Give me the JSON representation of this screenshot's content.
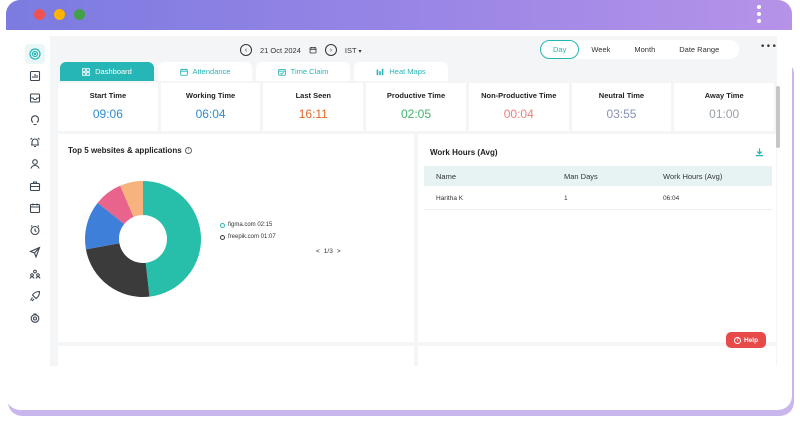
{
  "window": {
    "dots": [
      {
        "name": "close",
        "color": "#ef5350"
      },
      {
        "name": "minimize",
        "color": "#ffb300"
      },
      {
        "name": "maximize",
        "color": "#43a047"
      }
    ]
  },
  "sidebar": {
    "items": [
      {
        "name": "sidebar-item-dashboard",
        "icon": "target-icon",
        "active": true
      },
      {
        "name": "sidebar-item-reports",
        "icon": "report-icon"
      },
      {
        "name": "sidebar-item-inbox",
        "icon": "inbox-icon"
      },
      {
        "name": "sidebar-item-productivity",
        "icon": "bulb-icon"
      },
      {
        "name": "sidebar-item-alerts",
        "icon": "alarm-icon"
      },
      {
        "name": "sidebar-item-users",
        "icon": "user-icon"
      },
      {
        "name": "sidebar-item-projects",
        "icon": "briefcase-icon"
      },
      {
        "name": "sidebar-item-calendar",
        "icon": "calendar-icon"
      },
      {
        "name": "sidebar-item-timesheet",
        "icon": "clock-icon"
      },
      {
        "name": "sidebar-item-tracking",
        "icon": "send-icon"
      },
      {
        "name": "sidebar-item-teams",
        "icon": "team-icon"
      },
      {
        "name": "sidebar-item-performance",
        "icon": "rocket-icon"
      },
      {
        "name": "sidebar-item-settings",
        "icon": "gear-icon"
      }
    ]
  },
  "toolbar": {
    "date": "21 Oct 2024",
    "timezone": "IST",
    "ranges": [
      "Day",
      "Week",
      "Month",
      "Date Range"
    ],
    "active_range": "Day",
    "more": "•••"
  },
  "tabs": [
    {
      "label": "Dashboard",
      "active": true
    },
    {
      "label": "Attendance"
    },
    {
      "label": "Time Claim"
    },
    {
      "label": "Heat Maps"
    }
  ],
  "stats": [
    {
      "label": "Start Time",
      "value": "09:06",
      "color": "#2c8dd6"
    },
    {
      "label": "Working Time",
      "value": "06:04",
      "color": "#2c8dd6"
    },
    {
      "label": "Last Seen",
      "value": "16:11",
      "color": "#e0662a"
    },
    {
      "label": "Productive Time",
      "value": "02:05",
      "color": "#3fb56a"
    },
    {
      "label": "Non-Productive Time",
      "value": "00:04",
      "color": "#ef7f7f"
    },
    {
      "label": "Neutral Time",
      "value": "03:55",
      "color": "#8891b8"
    },
    {
      "label": "Away Time",
      "value": "01:00",
      "color": "#9aa0a6"
    }
  ],
  "websites": {
    "title": "Top 5 websites & applications",
    "legend": [
      {
        "label": "figma.com 02:15",
        "color": "#27b6b6"
      },
      {
        "label": "freepik.com 01:07",
        "color": "#3b3b3b"
      }
    ],
    "pager": "1/3",
    "chart_data": {
      "type": "pie",
      "slices": [
        {
          "label": "figma.com",
          "value": 135,
          "color": "#27bfa9"
        },
        {
          "label": "freepik.com",
          "value": 67,
          "color": "#3b3b3b"
        },
        {
          "label": "",
          "value": 38,
          "color": "#3d7fd9"
        },
        {
          "label": "",
          "value": 22,
          "color": "#e8648c"
        },
        {
          "label": "",
          "value": 18,
          "color": "#f6b37e"
        }
      ]
    }
  },
  "work_hours": {
    "title": "Work Hours (Avg)",
    "columns": [
      "Name",
      "Man Days",
      "Work Hours (Avg)"
    ],
    "rows": [
      [
        "Haritha K",
        "1",
        "06:04"
      ]
    ]
  },
  "help": {
    "label": "Help"
  }
}
